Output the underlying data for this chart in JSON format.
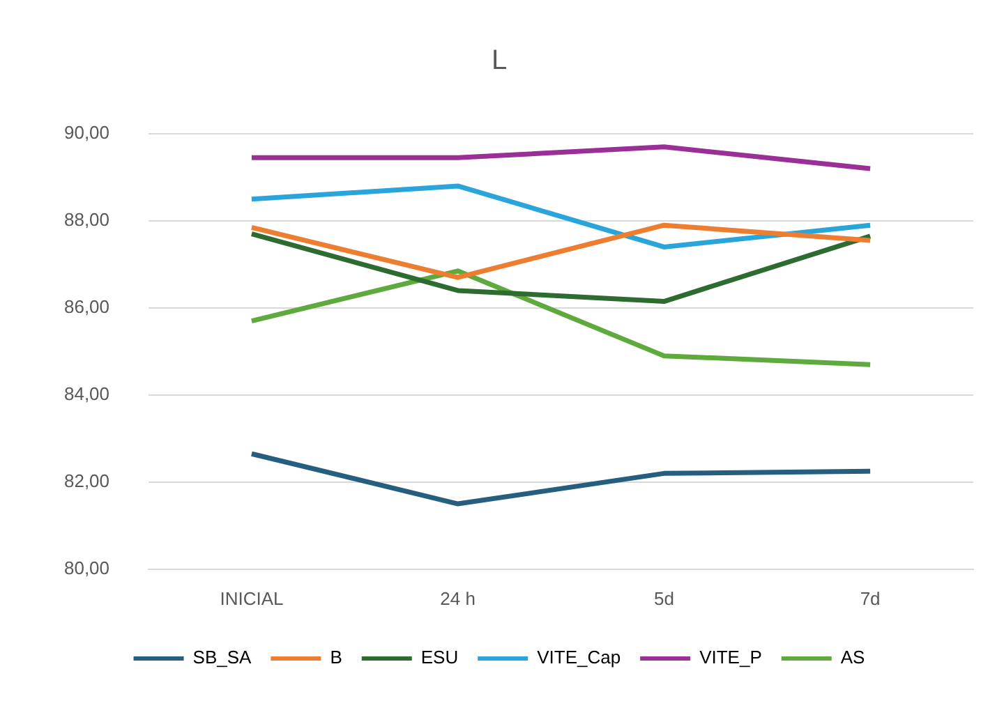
{
  "chart_data": {
    "type": "line",
    "title": "L",
    "categories": [
      "INICIAL",
      "24 h",
      "5d",
      "7d"
    ],
    "series": [
      {
        "name": "SB_SA",
        "color": "#255e7e",
        "values": [
          82.65,
          81.5,
          82.2,
          82.25
        ]
      },
      {
        "name": "B",
        "color": "#ed7d31",
        "values": [
          87.85,
          86.7,
          87.9,
          87.55
        ]
      },
      {
        "name": "ESU",
        "color": "#2e6b30",
        "values": [
          87.7,
          86.4,
          86.15,
          87.65
        ]
      },
      {
        "name": "VITE_Cap",
        "color": "#2aa5dc",
        "values": [
          88.5,
          88.8,
          87.4,
          87.9
        ]
      },
      {
        "name": "VITE_P",
        "color": "#9b2f98",
        "values": [
          89.45,
          89.45,
          89.7,
          89.2
        ]
      },
      {
        "name": "AS",
        "color": "#5faa3c",
        "values": [
          85.7,
          86.85,
          84.9,
          84.7
        ]
      }
    ],
    "ylim": [
      80,
      90
    ],
    "yticks": [
      {
        "value": 80,
        "label": "80,00"
      },
      {
        "value": 82,
        "label": "82,00"
      },
      {
        "value": 84,
        "label": "84,00"
      },
      {
        "value": 86,
        "label": "86,00"
      },
      {
        "value": 88,
        "label": "88,00"
      },
      {
        "value": 90,
        "label": "90,00"
      }
    ],
    "grid": "y",
    "legend": "bottom",
    "marker": "none",
    "line_style": "solid"
  }
}
